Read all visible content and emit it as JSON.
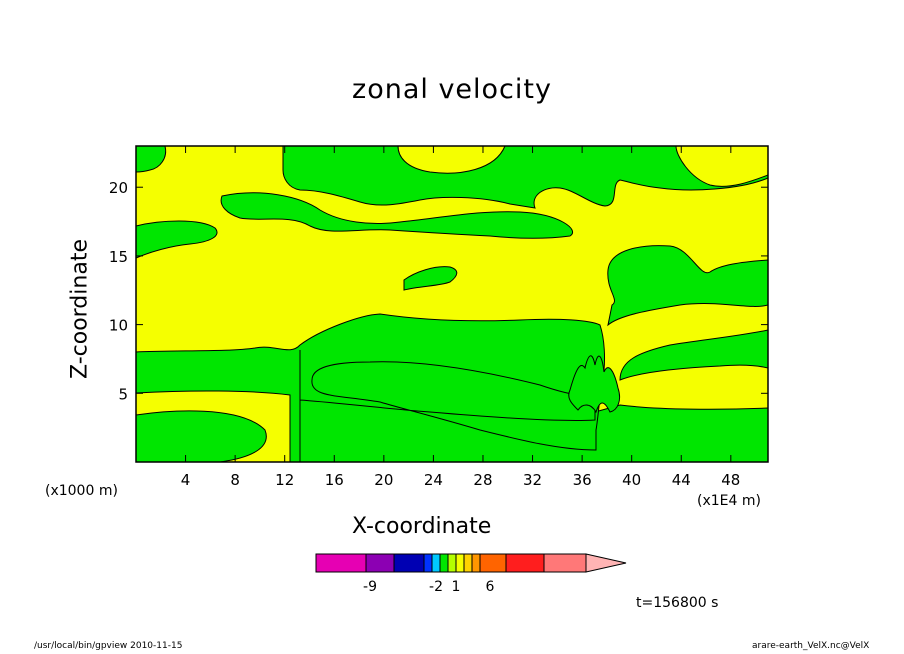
{
  "chart_data": {
    "type": "heatmap",
    "title": "zonal velocity",
    "xlabel": "X-coordinate",
    "ylabel": "Z-coordinate",
    "x_unit_note": "(x1000 m)",
    "x_scale_note": "(x1E4 m)",
    "time_label": "t=156800 s",
    "xlim": [
      0,
      51
    ],
    "ylim": [
      0,
      23
    ],
    "x_ticks": [
      4,
      8,
      12,
      16,
      20,
      24,
      28,
      32,
      36,
      40,
      44,
      48
    ],
    "y_ticks": [
      5,
      10,
      15,
      20
    ],
    "regions": [
      {
        "name": "positive",
        "color": "#f5ff00"
      },
      {
        "name": "near-zero",
        "color": "#00e600"
      }
    ],
    "colorbar": {
      "colors": [
        "#e600b3",
        "#8c00b3",
        "#0000b3",
        "#0032ff",
        "#00c8ff",
        "#00e600",
        "#b4ff00",
        "#f5ff00",
        "#ffd200",
        "#ff9600",
        "#ff6400",
        "#ff1e1e",
        "#ff7878",
        "#ffb4b4"
      ],
      "labels": [
        "-9",
        "-2",
        "1",
        "6"
      ]
    }
  },
  "footer": {
    "left": "/usr/local/bin/gpview  2010-11-15",
    "right": "arare-earth_VelX.nc@VelX"
  }
}
